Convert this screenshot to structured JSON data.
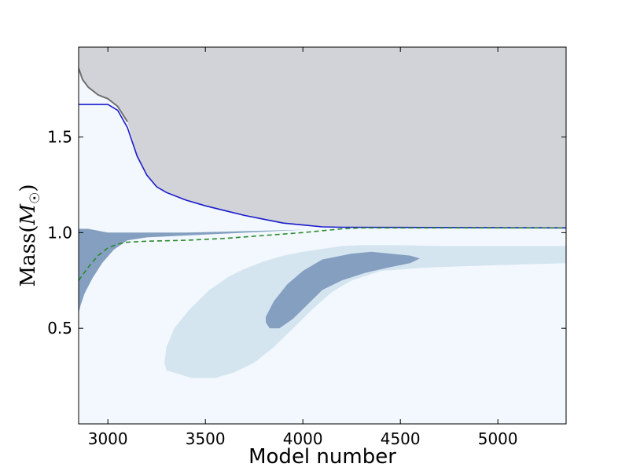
{
  "chart_data": {
    "type": "area",
    "xlabel": "Model number",
    "ylabel": "Mass(M_☉)",
    "xlim": [
      2850,
      5350
    ],
    "ylim": [
      0.0,
      1.97
    ],
    "x_ticks": [
      3000,
      3500,
      4000,
      4500,
      5000
    ],
    "y_ticks": [
      0.5,
      1.0,
      1.5
    ],
    "grid": false,
    "colors": {
      "background": "#f2f8fd",
      "upper_region": "#d1d3d8",
      "outer_zone": "#d5e5f0",
      "inner_zone": "#849fc0",
      "mass_line": "#1a1acc",
      "noisy_line": "#707070",
      "dashed_line": "#2a8a2a"
    },
    "series": [
      {
        "style": "solid",
        "points": [
          [
            2850,
            1.67
          ],
          [
            3000,
            1.67
          ],
          [
            3050,
            1.64
          ],
          [
            3100,
            1.55
          ],
          [
            3150,
            1.4
          ],
          [
            3200,
            1.3
          ],
          [
            3250,
            1.24
          ],
          [
            3300,
            1.21
          ],
          [
            3400,
            1.17
          ],
          [
            3500,
            1.14
          ],
          [
            3600,
            1.115
          ],
          [
            3700,
            1.09
          ],
          [
            3800,
            1.07
          ],
          [
            3900,
            1.05
          ],
          [
            4000,
            1.04
          ],
          [
            4100,
            1.03
          ],
          [
            4200,
            1.028
          ],
          [
            5350,
            1.025
          ]
        ]
      },
      {
        "style": "noisy",
        "points": [
          [
            2850,
            1.86
          ],
          [
            2870,
            1.8
          ],
          [
            2900,
            1.76
          ],
          [
            2950,
            1.72
          ],
          [
            3000,
            1.7
          ],
          [
            3050,
            1.66
          ],
          [
            3100,
            1.58
          ]
        ]
      },
      {
        "style": "dashed",
        "points": [
          [
            2850,
            0.75
          ],
          [
            2900,
            0.82
          ],
          [
            2950,
            0.88
          ],
          [
            3000,
            0.92
          ],
          [
            3050,
            0.94
          ],
          [
            3100,
            0.95
          ],
          [
            3200,
            0.955
          ],
          [
            3400,
            0.96
          ],
          [
            3600,
            0.97
          ],
          [
            3800,
            0.985
          ],
          [
            4000,
            1.0
          ],
          [
            4100,
            1.01
          ],
          [
            4200,
            1.02
          ],
          [
            4300,
            1.025
          ],
          [
            5350,
            1.025
          ]
        ]
      }
    ],
    "regions": [
      {
        "role": "upper",
        "polygon": [
          [
            2850,
            1.97
          ],
          [
            5350,
            1.97
          ],
          [
            5350,
            1.025
          ],
          [
            4200,
            1.028
          ],
          [
            4100,
            1.03
          ],
          [
            4000,
            1.04
          ],
          [
            3900,
            1.05
          ],
          [
            3800,
            1.07
          ],
          [
            3700,
            1.09
          ],
          [
            3600,
            1.115
          ],
          [
            3500,
            1.14
          ],
          [
            3400,
            1.17
          ],
          [
            3300,
            1.21
          ],
          [
            3250,
            1.24
          ],
          [
            3200,
            1.3
          ],
          [
            3150,
            1.4
          ],
          [
            3100,
            1.58
          ],
          [
            3050,
            1.66
          ],
          [
            3000,
            1.7
          ],
          [
            2950,
            1.72
          ],
          [
            2900,
            1.76
          ],
          [
            2870,
            1.8
          ],
          [
            2850,
            1.86
          ]
        ]
      },
      {
        "role": "outer",
        "polygon": [
          [
            3430,
            0.24
          ],
          [
            3300,
            0.28
          ],
          [
            3290,
            0.32
          ],
          [
            3300,
            0.4
          ],
          [
            3340,
            0.5
          ],
          [
            3420,
            0.6
          ],
          [
            3520,
            0.7
          ],
          [
            3620,
            0.77
          ],
          [
            3700,
            0.81
          ],
          [
            3800,
            0.85
          ],
          [
            3900,
            0.88
          ],
          [
            4000,
            0.9
          ],
          [
            4100,
            0.915
          ],
          [
            4200,
            0.93
          ],
          [
            4300,
            0.935
          ],
          [
            4450,
            0.935
          ],
          [
            4700,
            0.93
          ],
          [
            5000,
            0.93
          ],
          [
            5350,
            0.93
          ],
          [
            5350,
            0.84
          ],
          [
            5000,
            0.83
          ],
          [
            4700,
            0.82
          ],
          [
            4600,
            0.815
          ],
          [
            4400,
            0.8
          ],
          [
            4250,
            0.75
          ],
          [
            4150,
            0.69
          ],
          [
            4050,
            0.6
          ],
          [
            3950,
            0.5
          ],
          [
            3850,
            0.4
          ],
          [
            3750,
            0.32
          ],
          [
            3650,
            0.27
          ],
          [
            3550,
            0.24
          ]
        ]
      },
      {
        "role": "inner",
        "polygon": [
          [
            3830,
            0.5
          ],
          [
            3810,
            0.53
          ],
          [
            3810,
            0.56
          ],
          [
            3850,
            0.64
          ],
          [
            3920,
            0.73
          ],
          [
            4000,
            0.8
          ],
          [
            4100,
            0.86
          ],
          [
            4250,
            0.89
          ],
          [
            4350,
            0.9
          ],
          [
            4450,
            0.89
          ],
          [
            4550,
            0.88
          ],
          [
            4600,
            0.865
          ],
          [
            4550,
            0.84
          ],
          [
            4450,
            0.82
          ],
          [
            4320,
            0.79
          ],
          [
            4200,
            0.75
          ],
          [
            4100,
            0.7
          ],
          [
            4020,
            0.62
          ],
          [
            3950,
            0.55
          ],
          [
            3880,
            0.5
          ]
        ]
      },
      {
        "role": "inner",
        "polygon": [
          [
            2850,
            0.58
          ],
          [
            2860,
            0.62
          ],
          [
            2880,
            0.68
          ],
          [
            2920,
            0.76
          ],
          [
            2970,
            0.84
          ],
          [
            3030,
            0.91
          ],
          [
            3100,
            0.96
          ],
          [
            3200,
            0.975
          ],
          [
            3400,
            0.985
          ],
          [
            3600,
            0.995
          ],
          [
            3800,
            1.005
          ],
          [
            4000,
            1.015
          ],
          [
            3800,
            1.01
          ],
          [
            3400,
            1.0
          ],
          [
            3000,
            1.0
          ],
          [
            2900,
            1.02
          ],
          [
            2850,
            1.02
          ]
        ]
      }
    ]
  }
}
